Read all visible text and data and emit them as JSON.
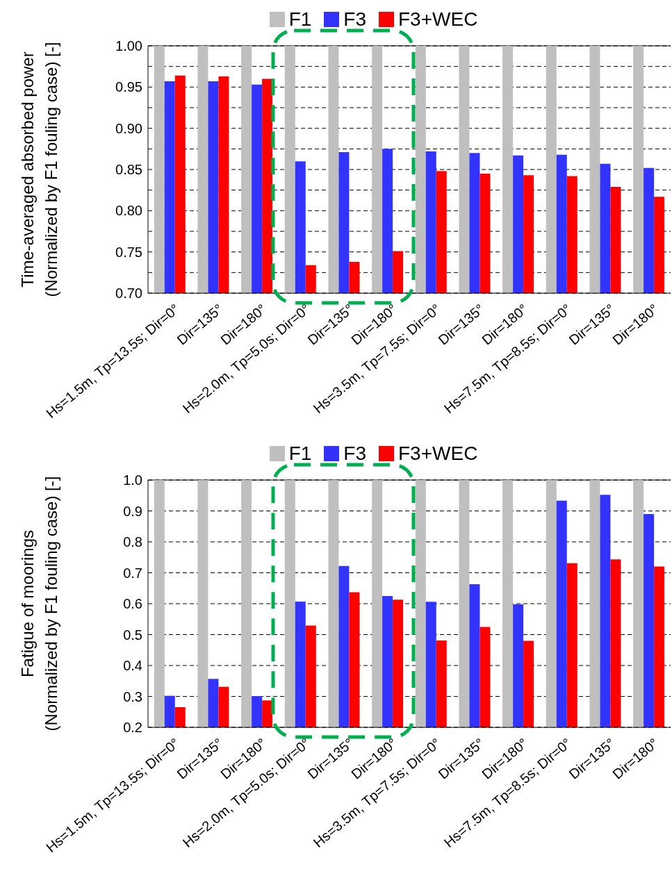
{
  "chart_data": [
    {
      "type": "bar",
      "ylabel": "Time-averaged absorbed power\n(Normalized by F1 fouling case) [-]",
      "categories": [
        "Hs=1.5m, Tp=13.5s; Dir=0°",
        "Dir=135°",
        "Dir=180°",
        "Hs=2.0m, Tp=5.0s; Dir=0°",
        "Dir=135°",
        "Dir=180°",
        "Hs=3.5m, Tp=7.5s; Dir=0°",
        "Dir=135°",
        "Dir=180°",
        "Hs=7.5m, Tp=8.5s; Dir=0°",
        "Dir=135°",
        "Dir=180°"
      ],
      "series": [
        {
          "name": "F1",
          "color": "#bfbfbf",
          "values": [
            1,
            1,
            1,
            1,
            1,
            1,
            1,
            1,
            1,
            1,
            1,
            1
          ]
        },
        {
          "name": "F3",
          "color": "#3333ff",
          "values": [
            0.957,
            0.957,
            0.953,
            0.86,
            0.871,
            0.875,
            0.872,
            0.87,
            0.867,
            0.868,
            0.857,
            0.852
          ]
        },
        {
          "name": "F3+WEC",
          "color": "#ff0000",
          "values": [
            0.964,
            0.963,
            0.96,
            0.734,
            0.738,
            0.751,
            0.848,
            0.845,
            0.843,
            0.842,
            0.829,
            0.817
          ]
        }
      ],
      "ylim": [
        0.7,
        1.0
      ],
      "yticks": [
        {
          "value": 0.7,
          "label": "0.70"
        },
        {
          "value": 0.725,
          "label": null
        },
        {
          "value": 0.75,
          "label": "0.75"
        },
        {
          "value": 0.775,
          "label": null
        },
        {
          "value": 0.8,
          "label": "0.80"
        },
        {
          "value": 0.825,
          "label": null
        },
        {
          "value": 0.85,
          "label": "0.85"
        },
        {
          "value": 0.875,
          "label": null
        },
        {
          "value": 0.9,
          "label": "0.90"
        },
        {
          "value": 0.925,
          "label": null
        },
        {
          "value": 0.95,
          "label": "0.95"
        },
        {
          "value": 0.975,
          "label": null
        },
        {
          "value": 1.0,
          "label": "1.00"
        }
      ],
      "grid": "y",
      "legend": "top"
    },
    {
      "type": "bar",
      "ylabel": "Fatigue of moorings\n(Normalized by F1 fouling case) [-]",
      "categories": [
        "Hs=1.5m, Tp=13.5s; Dir=0°",
        "Dir=135°",
        "Dir=180°",
        "Hs=2.0m, Tp=5.0s; Dir=0°",
        "Dir=135°",
        "Dir=180°",
        "Hs=3.5m, Tp=7.5s; Dir=0°",
        "Dir=135°",
        "Dir=180°",
        "Hs=7.5m, Tp=8.5s; Dir=0°",
        "Dir=135°",
        "Dir=180°"
      ],
      "series": [
        {
          "name": "F1",
          "color": "#bfbfbf",
          "values": [
            1,
            1,
            1,
            1,
            1,
            1,
            1,
            1,
            1,
            1,
            1,
            1
          ]
        },
        {
          "name": "F3",
          "color": "#3333ff",
          "values": [
            0.302,
            0.357,
            0.301,
            0.607,
            0.722,
            0.625,
            0.606,
            0.663,
            0.598,
            0.933,
            0.952,
            0.89
          ]
        },
        {
          "name": "F3+WEC",
          "color": "#ff0000",
          "values": [
            0.265,
            0.331,
            0.287,
            0.529,
            0.637,
            0.613,
            0.481,
            0.525,
            0.48,
            0.731,
            0.743,
            0.72
          ]
        }
      ],
      "ylim": [
        0.2,
        1.0
      ],
      "yticks": [
        {
          "value": 0.2,
          "label": "0.2"
        },
        {
          "value": 0.3,
          "label": "0.3"
        },
        {
          "value": 0.4,
          "label": "0.4"
        },
        {
          "value": 0.5,
          "label": "0.5"
        },
        {
          "value": 0.6,
          "label": "0.6"
        },
        {
          "value": 0.7,
          "label": "0.7"
        },
        {
          "value": 0.8,
          "label": "0.8"
        },
        {
          "value": 0.9,
          "label": "0.9"
        },
        {
          "value": 1.0,
          "label": "1.0"
        }
      ],
      "grid": "y",
      "legend": "top"
    }
  ]
}
